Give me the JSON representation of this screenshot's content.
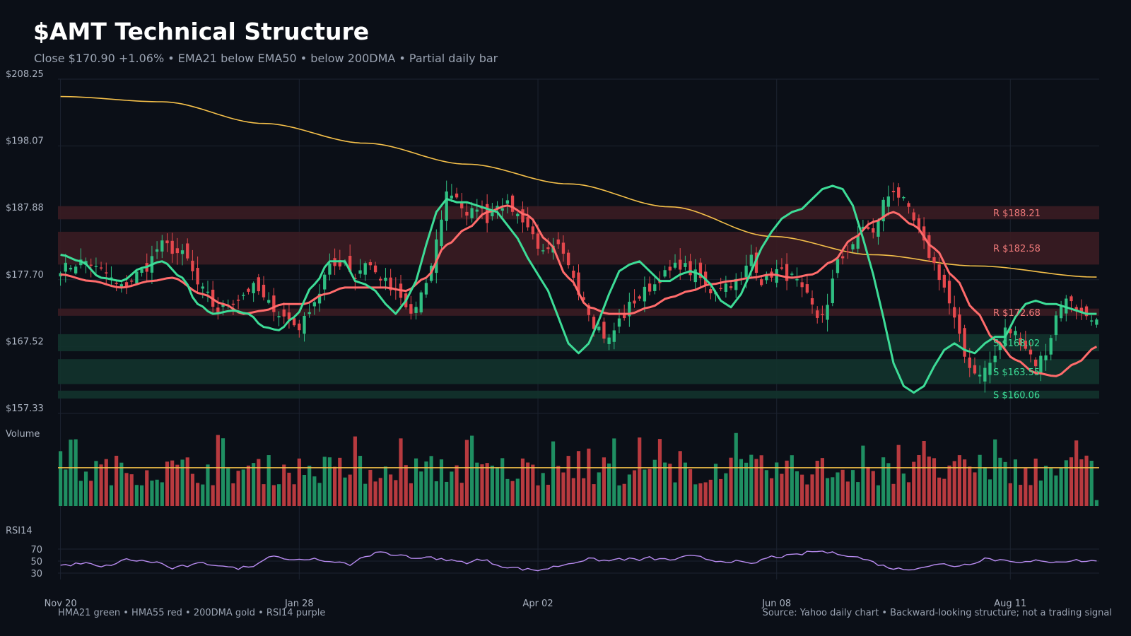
{
  "header": {
    "title": "$AMT Technical Structure",
    "subtitle": "Close $170.90  +1.06%  •  EMA21 below EMA50 • below 200DMA  •  Partial daily bar"
  },
  "footer": {
    "legend": "HMA21 green • HMA55 red • 200DMA gold  •  RSI14 purple",
    "source": "Source: Yahoo daily chart • Backward-looking structure; not a trading signal"
  },
  "colors": {
    "background": "#0b0f17",
    "up": "#2fbf82",
    "down": "#e5484d",
    "hma21": "#3ddc97",
    "hma55": "#ff6b6b",
    "dma200": "#f5c04a",
    "rsi": "#b98cf2",
    "resistance_zone": "#3a1c22",
    "support_zone": "#12332c",
    "resistance_text": "#f07a7a",
    "support_text": "#3ddc97"
  },
  "chart_data": {
    "type": "candlestick",
    "x_labels": [
      "Nov 20",
      "Jan 28",
      "Apr 02",
      "Jun 08",
      "Aug 11"
    ],
    "x_label_index": [
      0,
      47,
      94,
      141,
      187
    ],
    "y_ticks": [
      "$208.25",
      "$198.07",
      "$187.88",
      "$177.70",
      "$167.52",
      "$157.33"
    ],
    "ylim": [
      157.33,
      208.25
    ],
    "panel_labels": {
      "volume": "Volume",
      "rsi": "RSI14"
    },
    "rsi_ticks": [
      "70",
      "50",
      "30"
    ],
    "rsi_range": [
      10,
      90
    ],
    "zones": [
      {
        "label": "R $188.21",
        "kind": "resistance",
        "low": 186.9,
        "high": 188.9
      },
      {
        "label": "R $182.58",
        "kind": "resistance",
        "low": 180.0,
        "high": 185.0
      },
      {
        "label": "R $172.68",
        "kind": "resistance",
        "low": 172.2,
        "high": 173.3
      },
      {
        "label": "S $168.02",
        "kind": "support",
        "low": 166.8,
        "high": 169.4
      },
      {
        "label": "S $163.55",
        "kind": "support",
        "low": 161.8,
        "high": 165.6
      },
      {
        "label": "S $160.06",
        "kind": "support",
        "low": 159.6,
        "high": 160.8
      }
    ],
    "close_anchors": [
      [
        0,
        179.5
      ],
      [
        5,
        180.5
      ],
      [
        8,
        179.0
      ],
      [
        12,
        176.5
      ],
      [
        16,
        179.0
      ],
      [
        20,
        183.0
      ],
      [
        24,
        181.5
      ],
      [
        28,
        176.0
      ],
      [
        31,
        173.0
      ],
      [
        34,
        174.5
      ],
      [
        38,
        176.5
      ],
      [
        41,
        174.0
      ],
      [
        44,
        172.0
      ],
      [
        47,
        170.5
      ],
      [
        50,
        174.5
      ],
      [
        53,
        179.5
      ],
      [
        56,
        180.5
      ],
      [
        58,
        178.0
      ],
      [
        60,
        180.5
      ],
      [
        63,
        178.0
      ],
      [
        66,
        175.5
      ],
      [
        69,
        172.5
      ],
      [
        72,
        176.5
      ],
      [
        74,
        183.5
      ],
      [
        76,
        191.0
      ],
      [
        78,
        190.5
      ],
      [
        80,
        187.0
      ],
      [
        82,
        189.0
      ],
      [
        84,
        187.0
      ],
      [
        86,
        189.5
      ],
      [
        88,
        189.0
      ],
      [
        91,
        187.0
      ],
      [
        93,
        184.5
      ],
      [
        95,
        181.5
      ],
      [
        98,
        182.5
      ],
      [
        100,
        179.5
      ],
      [
        103,
        175.0
      ],
      [
        105,
        171.0
      ],
      [
        108,
        168.5
      ],
      [
        110,
        171.5
      ],
      [
        113,
        174.5
      ],
      [
        116,
        176.5
      ],
      [
        119,
        178.5
      ],
      [
        122,
        180.0
      ],
      [
        125,
        178.5
      ],
      [
        128,
        176.0
      ],
      [
        131,
        177.0
      ],
      [
        134,
        177.5
      ],
      [
        136,
        181.5
      ],
      [
        138,
        177.5
      ],
      [
        141,
        179.0
      ],
      [
        144,
        178.0
      ],
      [
        147,
        175.0
      ],
      [
        149,
        172.0
      ],
      [
        151,
        173.5
      ],
      [
        153,
        181.0
      ],
      [
        156,
        182.5
      ],
      [
        158,
        186.0
      ],
      [
        160,
        184.5
      ],
      [
        162,
        189.5
      ],
      [
        164,
        191.5
      ],
      [
        166,
        189.5
      ],
      [
        168,
        186.5
      ],
      [
        170,
        183.0
      ],
      [
        172,
        180.0
      ],
      [
        174,
        176.5
      ],
      [
        176,
        171.5
      ],
      [
        178,
        166.0
      ],
      [
        180,
        163.5
      ],
      [
        182,
        164.0
      ],
      [
        184,
        166.0
      ],
      [
        186,
        170.0
      ],
      [
        188,
        169.5
      ],
      [
        190,
        167.5
      ],
      [
        192,
        165.0
      ],
      [
        194,
        166.5
      ],
      [
        196,
        172.0
      ],
      [
        198,
        175.5
      ],
      [
        200,
        172.5
      ],
      [
        202,
        171.5
      ],
      [
        204,
        170.9
      ]
    ],
    "dma200_anchors": [
      [
        0,
        205.6
      ],
      [
        20,
        204.8
      ],
      [
        40,
        201.5
      ],
      [
        60,
        198.5
      ],
      [
        80,
        195.3
      ],
      [
        100,
        192.3
      ],
      [
        120,
        188.8
      ],
      [
        140,
        184.3
      ],
      [
        160,
        181.5
      ],
      [
        180,
        179.8
      ],
      [
        204,
        178.1
      ]
    ],
    "hma21_anchors": [
      [
        0,
        181.5
      ],
      [
        4,
        180.5
      ],
      [
        8,
        178.0
      ],
      [
        12,
        177.5
      ],
      [
        16,
        179.5
      ],
      [
        20,
        180.5
      ],
      [
        24,
        178.0
      ],
      [
        27,
        174.0
      ],
      [
        30,
        172.5
      ],
      [
        34,
        173.0
      ],
      [
        37,
        172.5
      ],
      [
        40,
        170.5
      ],
      [
        43,
        170.0
      ],
      [
        46,
        172.0
      ],
      [
        50,
        177.0
      ],
      [
        53,
        180.5
      ],
      [
        56,
        180.5
      ],
      [
        58,
        177.5
      ],
      [
        60,
        177.0
      ],
      [
        62,
        176.0
      ],
      [
        64,
        174.0
      ],
      [
        66,
        172.5
      ],
      [
        68,
        174.5
      ],
      [
        70,
        177.5
      ],
      [
        72,
        183.0
      ],
      [
        74,
        188.0
      ],
      [
        76,
        190.0
      ],
      [
        78,
        189.5
      ],
      [
        80,
        189.5
      ],
      [
        82,
        189.0
      ],
      [
        84,
        188.5
      ],
      [
        86,
        188.0
      ],
      [
        88,
        186.0
      ],
      [
        90,
        184.0
      ],
      [
        92,
        181.0
      ],
      [
        94,
        178.5
      ],
      [
        96,
        176.0
      ],
      [
        98,
        172.0
      ],
      [
        100,
        168.0
      ],
      [
        102,
        166.5
      ],
      [
        104,
        168.0
      ],
      [
        106,
        171.5
      ],
      [
        108,
        175.5
      ],
      [
        110,
        179.0
      ],
      [
        112,
        180.0
      ],
      [
        114,
        180.5
      ],
      [
        116,
        179.0
      ],
      [
        118,
        177.5
      ],
      [
        120,
        177.5
      ],
      [
        122,
        178.5
      ],
      [
        124,
        179.0
      ],
      [
        126,
        178.5
      ],
      [
        128,
        177.0
      ],
      [
        130,
        174.5
      ],
      [
        132,
        173.5
      ],
      [
        134,
        175.5
      ],
      [
        136,
        179.0
      ],
      [
        138,
        182.5
      ],
      [
        140,
        185.0
      ],
      [
        142,
        187.0
      ],
      [
        144,
        188.0
      ],
      [
        146,
        188.5
      ],
      [
        148,
        190.0
      ],
      [
        150,
        191.5
      ],
      [
        152,
        192.0
      ],
      [
        154,
        191.5
      ],
      [
        156,
        189.0
      ],
      [
        158,
        184.0
      ],
      [
        160,
        178.5
      ],
      [
        162,
        172.0
      ],
      [
        164,
        165.0
      ],
      [
        166,
        161.5
      ],
      [
        168,
        160.5
      ],
      [
        170,
        161.5
      ],
      [
        172,
        164.5
      ],
      [
        174,
        167.0
      ],
      [
        176,
        168.0
      ],
      [
        178,
        167.0
      ],
      [
        180,
        166.5
      ],
      [
        182,
        168.0
      ],
      [
        184,
        169.0
      ],
      [
        186,
        169.0
      ],
      [
        188,
        172.0
      ],
      [
        190,
        174.0
      ],
      [
        192,
        174.5
      ],
      [
        194,
        174.0
      ],
      [
        196,
        174.0
      ],
      [
        198,
        173.5
      ],
      [
        200,
        173.0
      ],
      [
        202,
        172.5
      ],
      [
        204,
        172.5
      ]
    ],
    "hma55_anchors": [
      [
        0,
        178.5
      ],
      [
        6,
        177.5
      ],
      [
        12,
        176.5
      ],
      [
        18,
        177.5
      ],
      [
        22,
        178.0
      ],
      [
        28,
        175.5
      ],
      [
        32,
        174.0
      ],
      [
        36,
        172.5
      ],
      [
        40,
        173.0
      ],
      [
        44,
        174.0
      ],
      [
        48,
        174.0
      ],
      [
        52,
        175.5
      ],
      [
        56,
        176.5
      ],
      [
        60,
        176.5
      ],
      [
        64,
        176.5
      ],
      [
        68,
        176.0
      ],
      [
        72,
        178.0
      ],
      [
        76,
        183.0
      ],
      [
        80,
        185.5
      ],
      [
        84,
        188.0
      ],
      [
        88,
        189.0
      ],
      [
        92,
        187.5
      ],
      [
        96,
        183.5
      ],
      [
        100,
        178.0
      ],
      [
        104,
        173.5
      ],
      [
        108,
        172.5
      ],
      [
        112,
        172.5
      ],
      [
        116,
        173.5
      ],
      [
        120,
        175.0
      ],
      [
        124,
        176.0
      ],
      [
        128,
        177.0
      ],
      [
        132,
        177.5
      ],
      [
        136,
        178.0
      ],
      [
        140,
        178.5
      ],
      [
        144,
        178.0
      ],
      [
        148,
        178.5
      ],
      [
        152,
        180.5
      ],
      [
        156,
        184.0
      ],
      [
        160,
        186.5
      ],
      [
        164,
        188.0
      ],
      [
        168,
        186.0
      ],
      [
        172,
        182.5
      ],
      [
        176,
        178.0
      ],
      [
        180,
        173.0
      ],
      [
        184,
        168.5
      ],
      [
        188,
        165.5
      ],
      [
        192,
        163.5
      ],
      [
        196,
        163.0
      ],
      [
        200,
        165.0
      ],
      [
        204,
        167.5
      ]
    ],
    "volume_mean_line": 0.52,
    "rsi_anchors": [
      [
        0,
        43
      ],
      [
        5,
        46
      ],
      [
        8,
        40
      ],
      [
        11,
        46
      ],
      [
        13,
        53
      ],
      [
        16,
        50
      ],
      [
        19,
        48
      ],
      [
        22,
        38
      ],
      [
        25,
        42
      ],
      [
        28,
        46
      ],
      [
        31,
        44
      ],
      [
        34,
        38
      ],
      [
        37,
        40
      ],
      [
        40,
        52
      ],
      [
        42,
        61
      ],
      [
        44,
        54
      ],
      [
        47,
        52
      ],
      [
        49,
        55
      ],
      [
        51,
        50
      ],
      [
        53,
        47
      ],
      [
        55,
        50
      ],
      [
        57,
        45
      ],
      [
        60,
        55
      ],
      [
        62,
        65
      ],
      [
        64,
        65
      ],
      [
        66,
        58
      ],
      [
        68,
        60
      ],
      [
        70,
        54
      ],
      [
        72,
        58
      ],
      [
        74,
        52
      ],
      [
        76,
        53
      ],
      [
        78,
        49
      ],
      [
        80,
        48
      ],
      [
        82,
        52
      ],
      [
        84,
        50
      ],
      [
        86,
        44
      ],
      [
        88,
        40
      ],
      [
        90,
        38
      ],
      [
        92,
        36
      ],
      [
        94,
        35
      ],
      [
        96,
        38
      ],
      [
        98,
        42
      ],
      [
        100,
        46
      ],
      [
        102,
        50
      ],
      [
        104,
        53
      ],
      [
        106,
        52
      ],
      [
        108,
        50
      ],
      [
        110,
        54
      ],
      [
        112,
        53
      ],
      [
        114,
        52
      ],
      [
        116,
        55
      ],
      [
        118,
        53
      ],
      [
        120,
        52
      ],
      [
        122,
        55
      ],
      [
        124,
        58
      ],
      [
        126,
        56
      ],
      [
        128,
        52
      ],
      [
        130,
        50
      ],
      [
        132,
        50
      ],
      [
        134,
        48
      ],
      [
        136,
        44
      ],
      [
        138,
        52
      ],
      [
        140,
        57
      ],
      [
        142,
        58
      ],
      [
        144,
        59
      ],
      [
        146,
        62
      ],
      [
        148,
        66
      ],
      [
        150,
        66
      ],
      [
        152,
        63
      ],
      [
        154,
        62
      ],
      [
        156,
        58
      ],
      [
        158,
        54
      ],
      [
        160,
        48
      ],
      [
        162,
        42
      ],
      [
        164,
        38
      ],
      [
        166,
        36
      ],
      [
        168,
        38
      ],
      [
        170,
        41
      ],
      [
        172,
        43
      ],
      [
        174,
        45
      ],
      [
        176,
        42
      ],
      [
        178,
        44
      ],
      [
        180,
        48
      ],
      [
        182,
        55
      ],
      [
        184,
        52
      ],
      [
        186,
        52
      ],
      [
        188,
        50
      ],
      [
        190,
        48
      ],
      [
        192,
        50
      ],
      [
        194,
        48
      ],
      [
        196,
        50
      ],
      [
        198,
        50
      ],
      [
        200,
        51
      ],
      [
        202,
        50
      ],
      [
        204,
        50
      ]
    ]
  }
}
